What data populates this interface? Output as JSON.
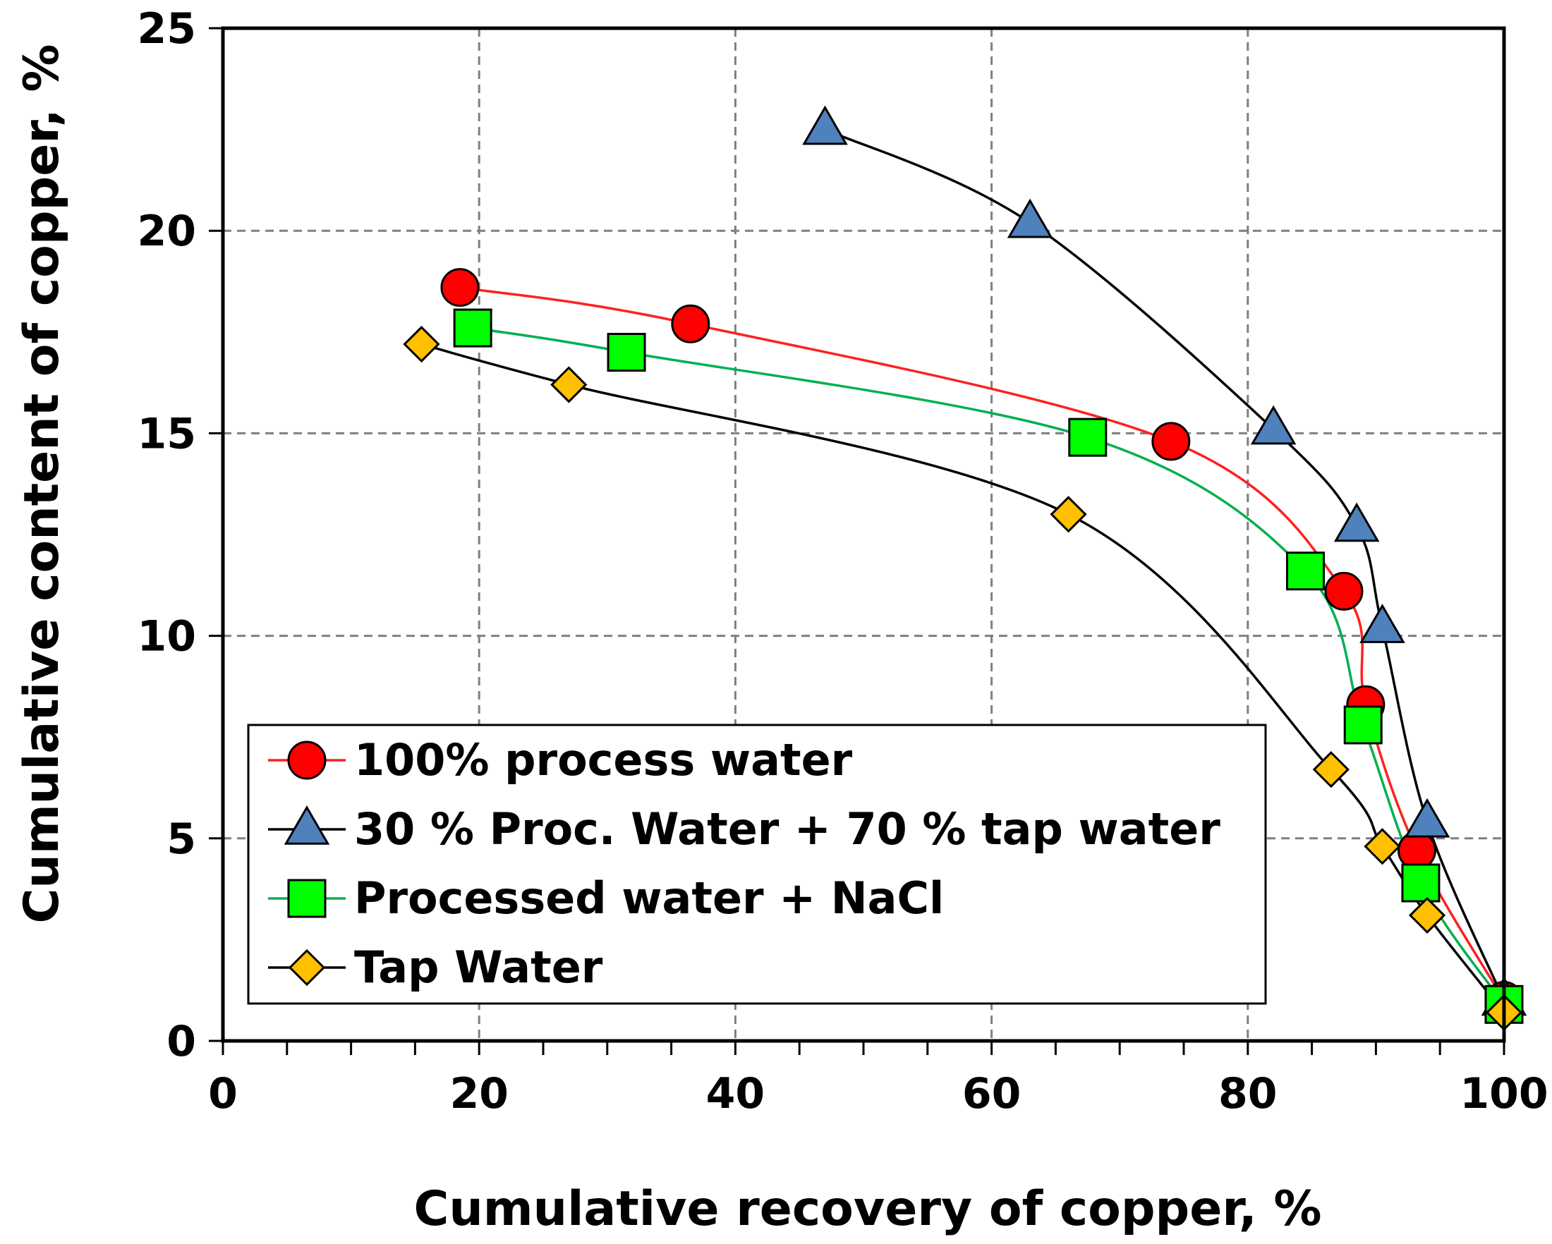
{
  "chart_data": {
    "type": "scatter",
    "title": "",
    "xlabel": "Cumulative recovery of copper, %",
    "ylabel": "Cumulative content of copper, %",
    "xlim": [
      0,
      100
    ],
    "ylim": [
      0,
      25
    ],
    "xticks": [
      "0",
      "20",
      "40",
      "60",
      "80",
      "100"
    ],
    "yticks": [
      "0",
      "5",
      "10",
      "15",
      "20",
      "25"
    ],
    "grid": true,
    "legend_position": "bottom-left",
    "series": [
      {
        "name": "100% process water",
        "marker": "circle",
        "marker_color": "#ff0000",
        "line_color": "#ff2020",
        "points": [
          [
            18.5,
            18.6
          ],
          [
            36.5,
            17.7
          ],
          [
            74.0,
            14.8
          ],
          [
            87.5,
            11.1
          ],
          [
            89.2,
            8.3
          ],
          [
            93.2,
            4.7
          ],
          [
            100.0,
            1.0
          ]
        ]
      },
      {
        "name": "30 % Proc. Water + 70 % tap water",
        "marker": "triangle",
        "marker_color": "#4f81bd",
        "line_color": "#000000",
        "points": [
          [
            47.0,
            22.5
          ],
          [
            63.0,
            20.2
          ],
          [
            82.0,
            15.1
          ],
          [
            88.5,
            12.7
          ],
          [
            90.5,
            10.2
          ],
          [
            94.0,
            5.4
          ],
          [
            100.0,
            1.0
          ]
        ]
      },
      {
        "name": "Processed water + NaCl",
        "marker": "square",
        "marker_color": "#00ff00",
        "line_color": "#00b050",
        "points": [
          [
            19.5,
            17.6
          ],
          [
            31.5,
            17.0
          ],
          [
            67.5,
            14.9
          ],
          [
            84.5,
            11.6
          ],
          [
            89.0,
            7.8
          ],
          [
            93.5,
            3.9
          ],
          [
            100.0,
            0.9
          ]
        ]
      },
      {
        "name": "Tap Water",
        "marker": "diamond",
        "marker_color": "#ffc000",
        "line_color": "#000000",
        "points": [
          [
            15.5,
            17.2
          ],
          [
            27.0,
            16.2
          ],
          [
            66.0,
            13.0
          ],
          [
            86.5,
            6.7
          ],
          [
            90.5,
            4.8
          ],
          [
            94.0,
            3.1
          ],
          [
            100.0,
            0.7
          ]
        ]
      }
    ]
  }
}
